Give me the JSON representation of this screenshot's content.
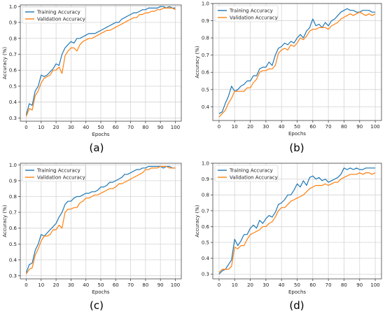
{
  "colors": {
    "train": "#1f77b4",
    "val": "#ff7f0e",
    "grid": "#d4d4d4",
    "axis": "#444444"
  },
  "chart_data": [
    {
      "type": "line",
      "caption": "(a)",
      "xlabel": "Epochs",
      "ylabel": "Accuracy (%)",
      "xlim": [
        -4,
        104
      ],
      "ylim": [
        0.28,
        1.01
      ],
      "xticks": [
        "0",
        "10",
        "20",
        "30",
        "40",
        "50",
        "60",
        "70",
        "80",
        "90",
        "100"
      ],
      "yticks": [
        "0.3",
        "0.4",
        "0.5",
        "0.6",
        "0.7",
        "0.8",
        "0.9",
        "1.0"
      ],
      "grid": true,
      "legend": "top-left",
      "x": [
        0,
        2,
        4,
        6,
        8,
        10,
        12,
        14,
        16,
        18,
        20,
        22,
        24,
        26,
        28,
        30,
        32,
        34,
        36,
        38,
        40,
        42,
        44,
        46,
        48,
        50,
        52,
        54,
        56,
        58,
        60,
        62,
        64,
        66,
        68,
        70,
        72,
        74,
        76,
        78,
        80,
        82,
        84,
        86,
        88,
        90,
        92,
        94,
        96,
        98,
        100
      ],
      "series": [
        {
          "name": "Training Accuracy",
          "values": [
            0.32,
            0.39,
            0.38,
            0.47,
            0.5,
            0.57,
            0.56,
            0.57,
            0.59,
            0.61,
            0.64,
            0.63,
            0.7,
            0.74,
            0.76,
            0.78,
            0.77,
            0.8,
            0.8,
            0.81,
            0.82,
            0.83,
            0.83,
            0.83,
            0.84,
            0.85,
            0.86,
            0.87,
            0.88,
            0.89,
            0.9,
            0.9,
            0.92,
            0.93,
            0.94,
            0.95,
            0.96,
            0.96,
            0.97,
            0.98,
            0.98,
            0.99,
            0.99,
            0.99,
            0.99,
            1.0,
            1.0,
            0.99,
            1.0,
            0.99,
            0.99
          ]
        },
        {
          "name": "Validation Accuracy",
          "values": [
            0.31,
            0.36,
            0.35,
            0.44,
            0.47,
            0.52,
            0.55,
            0.56,
            0.57,
            0.6,
            0.6,
            0.62,
            0.58,
            0.69,
            0.72,
            0.74,
            0.74,
            0.72,
            0.76,
            0.78,
            0.79,
            0.8,
            0.8,
            0.81,
            0.82,
            0.83,
            0.84,
            0.85,
            0.85,
            0.86,
            0.87,
            0.88,
            0.89,
            0.9,
            0.91,
            0.92,
            0.93,
            0.93,
            0.95,
            0.95,
            0.96,
            0.96,
            0.97,
            0.97,
            0.98,
            0.98,
            0.99,
            0.99,
            0.99,
            0.99,
            0.98
          ]
        }
      ]
    },
    {
      "type": "line",
      "caption": "(b)",
      "xlabel": "Epochs",
      "ylabel": "Accuracy (%)",
      "xlim": [
        -4,
        104
      ],
      "ylim": [
        0.32,
        1.0
      ],
      "xticks": [
        "0",
        "10",
        "20",
        "30",
        "40",
        "50",
        "60",
        "70",
        "80",
        "90",
        "100"
      ],
      "yticks": [
        "0.4",
        "0.5",
        "0.6",
        "0.7",
        "0.8",
        "0.9",
        "1.0"
      ],
      "grid": true,
      "legend": "top-left",
      "x": [
        0,
        2,
        4,
        6,
        8,
        10,
        12,
        14,
        16,
        18,
        20,
        22,
        24,
        26,
        28,
        30,
        32,
        34,
        36,
        38,
        40,
        42,
        44,
        46,
        48,
        50,
        52,
        54,
        56,
        58,
        60,
        62,
        64,
        66,
        68,
        70,
        72,
        74,
        76,
        78,
        80,
        82,
        84,
        86,
        88,
        90,
        92,
        94,
        96,
        98,
        100
      ],
      "series": [
        {
          "name": "Training Accuracy",
          "values": [
            0.36,
            0.37,
            0.42,
            0.46,
            0.52,
            0.49,
            0.5,
            0.52,
            0.53,
            0.55,
            0.55,
            0.58,
            0.58,
            0.62,
            0.63,
            0.63,
            0.66,
            0.64,
            0.7,
            0.74,
            0.75,
            0.77,
            0.76,
            0.78,
            0.77,
            0.8,
            0.82,
            0.8,
            0.84,
            0.86,
            0.91,
            0.87,
            0.88,
            0.86,
            0.89,
            0.87,
            0.9,
            0.91,
            0.93,
            0.95,
            0.96,
            0.97,
            0.96,
            0.96,
            0.95,
            0.95,
            0.96,
            0.96,
            0.96,
            0.95,
            0.95
          ]
        },
        {
          "name": "Validation Accuracy",
          "values": [
            0.34,
            0.36,
            0.38,
            0.42,
            0.45,
            0.49,
            0.49,
            0.49,
            0.49,
            0.51,
            0.51,
            0.54,
            0.56,
            0.6,
            0.61,
            0.61,
            0.62,
            0.62,
            0.64,
            0.71,
            0.73,
            0.74,
            0.73,
            0.76,
            0.75,
            0.77,
            0.8,
            0.79,
            0.81,
            0.84,
            0.85,
            0.85,
            0.86,
            0.86,
            0.86,
            0.85,
            0.87,
            0.88,
            0.89,
            0.91,
            0.92,
            0.93,
            0.94,
            0.93,
            0.94,
            0.95,
            0.94,
            0.93,
            0.94,
            0.93,
            0.94
          ]
        }
      ]
    },
    {
      "type": "line",
      "caption": "(c)",
      "xlabel": "Epochs",
      "ylabel": "Accuracy (%)",
      "xlim": [
        -4,
        104
      ],
      "ylim": [
        0.28,
        1.01
      ],
      "xticks": [
        "0",
        "10",
        "20",
        "30",
        "40",
        "50",
        "60",
        "70",
        "80",
        "90",
        "100"
      ],
      "yticks": [
        "0.3",
        "0.4",
        "0.5",
        "0.6",
        "0.7",
        "0.8",
        "0.9",
        "1.0"
      ],
      "grid": true,
      "legend": "top-left",
      "x": [
        0,
        2,
        4,
        6,
        8,
        10,
        12,
        14,
        16,
        18,
        20,
        22,
        24,
        26,
        28,
        30,
        32,
        34,
        36,
        38,
        40,
        42,
        44,
        46,
        48,
        50,
        52,
        54,
        56,
        58,
        60,
        62,
        64,
        66,
        68,
        70,
        72,
        74,
        76,
        78,
        80,
        82,
        84,
        86,
        88,
        90,
        92,
        94,
        96,
        98,
        100
      ],
      "series": [
        {
          "name": "Training Accuracy",
          "values": [
            0.32,
            0.37,
            0.38,
            0.46,
            0.5,
            0.56,
            0.55,
            0.57,
            0.59,
            0.61,
            0.63,
            0.67,
            0.7,
            0.75,
            0.77,
            0.77,
            0.79,
            0.8,
            0.8,
            0.81,
            0.82,
            0.82,
            0.83,
            0.83,
            0.84,
            0.86,
            0.86,
            0.87,
            0.89,
            0.89,
            0.9,
            0.91,
            0.92,
            0.94,
            0.94,
            0.95,
            0.96,
            0.97,
            0.97,
            0.98,
            0.98,
            0.99,
            0.99,
            0.99,
            0.99,
            0.99,
            0.98,
            0.99,
            0.99,
            0.98,
            0.98
          ]
        },
        {
          "name": "Validation Accuracy",
          "values": [
            0.31,
            0.34,
            0.35,
            0.43,
            0.47,
            0.52,
            0.55,
            0.55,
            0.56,
            0.59,
            0.59,
            0.62,
            0.6,
            0.7,
            0.72,
            0.72,
            0.73,
            0.73,
            0.76,
            0.77,
            0.79,
            0.79,
            0.8,
            0.81,
            0.81,
            0.82,
            0.83,
            0.84,
            0.85,
            0.85,
            0.86,
            0.88,
            0.88,
            0.89,
            0.9,
            0.91,
            0.92,
            0.93,
            0.94,
            0.95,
            0.97,
            0.97,
            0.98,
            0.98,
            0.98,
            0.99,
            0.99,
            0.99,
            0.98,
            0.98,
            0.98
          ]
        }
      ]
    },
    {
      "type": "line",
      "caption": "(d)",
      "xlabel": "Epochs",
      "ylabel": "Accuracy (%)",
      "xlim": [
        -4,
        104
      ],
      "ylim": [
        0.27,
        1.0
      ],
      "xticks": [
        "0",
        "10",
        "20",
        "30",
        "40",
        "50",
        "60",
        "70",
        "80",
        "90",
        "100"
      ],
      "yticks": [
        "0.3",
        "0.4",
        "0.5",
        "0.6",
        "0.7",
        "0.8",
        "0.9",
        "1.0"
      ],
      "grid": true,
      "legend": "top-left",
      "x": [
        0,
        2,
        4,
        6,
        8,
        10,
        12,
        14,
        16,
        18,
        20,
        22,
        24,
        26,
        28,
        30,
        32,
        34,
        36,
        38,
        40,
        42,
        44,
        46,
        48,
        50,
        52,
        54,
        56,
        58,
        60,
        62,
        64,
        66,
        68,
        70,
        72,
        74,
        76,
        78,
        80,
        82,
        84,
        86,
        88,
        90,
        92,
        94,
        96,
        98,
        100
      ],
      "series": [
        {
          "name": "Training Accuracy",
          "values": [
            0.3,
            0.32,
            0.33,
            0.36,
            0.39,
            0.52,
            0.48,
            0.51,
            0.55,
            0.55,
            0.59,
            0.61,
            0.59,
            0.64,
            0.62,
            0.65,
            0.67,
            0.66,
            0.69,
            0.74,
            0.75,
            0.77,
            0.8,
            0.8,
            0.83,
            0.87,
            0.85,
            0.89,
            0.86,
            0.91,
            0.92,
            0.9,
            0.91,
            0.89,
            0.9,
            0.88,
            0.89,
            0.9,
            0.91,
            0.93,
            0.97,
            0.96,
            0.97,
            0.96,
            0.97,
            0.96,
            0.96,
            0.97,
            0.97,
            0.97,
            0.97
          ]
        },
        {
          "name": "Validation Accuracy",
          "values": [
            0.31,
            0.33,
            0.33,
            0.33,
            0.35,
            0.47,
            0.46,
            0.48,
            0.48,
            0.52,
            0.55,
            0.56,
            0.57,
            0.58,
            0.6,
            0.6,
            0.62,
            0.63,
            0.66,
            0.7,
            0.72,
            0.72,
            0.74,
            0.76,
            0.77,
            0.78,
            0.79,
            0.8,
            0.82,
            0.84,
            0.85,
            0.86,
            0.86,
            0.86,
            0.87,
            0.86,
            0.87,
            0.88,
            0.88,
            0.9,
            0.91,
            0.92,
            0.93,
            0.93,
            0.93,
            0.94,
            0.93,
            0.94,
            0.94,
            0.93,
            0.94
          ]
        }
      ]
    }
  ]
}
